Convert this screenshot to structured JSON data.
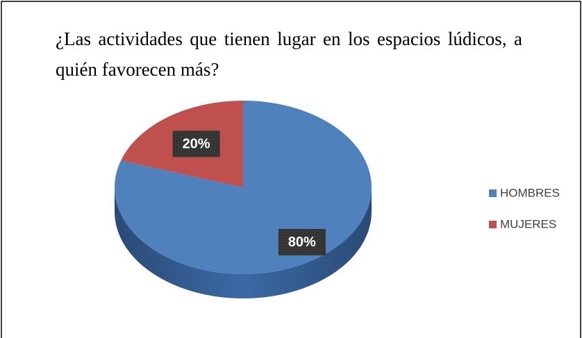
{
  "chart_data": {
    "type": "pie",
    "title": "¿Las actividades que tienen lugar en los espacios lúdicos, a quién favorecen más?",
    "categories": [
      "HOMBRES",
      "MUJERES"
    ],
    "values": [
      80,
      20
    ],
    "value_labels": [
      "80%",
      "20%"
    ],
    "colors": [
      "#4f81bd",
      "#c0504d"
    ],
    "legend": "right"
  }
}
